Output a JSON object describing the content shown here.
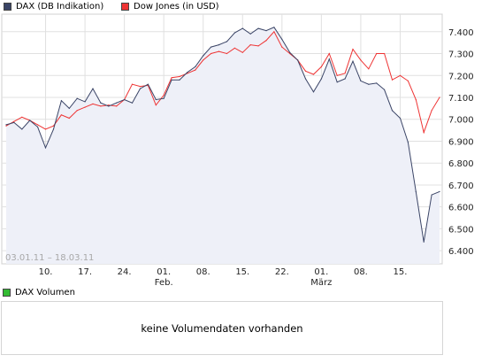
{
  "legend": {
    "dax_label": "DAX (DB Indikation)",
    "dow_label": "Dow Jones (in USD)"
  },
  "colors": {
    "dax": "#3a4466",
    "dow": "#ee3333",
    "fill": "#eef0f8",
    "volume": "#33bb33",
    "grid": "#e0e0e0"
  },
  "volume": {
    "legend_label": "DAX Volumen",
    "empty_text": "keine Volumendaten vorhanden"
  },
  "chart_data": {
    "type": "line",
    "date_range_label": "03.01.11 – 18.03.11",
    "ylim": [
      6340,
      7480
    ],
    "y_ticks": [
      6400,
      6500,
      6600,
      6700,
      6800,
      6900,
      7000,
      7100,
      7200,
      7300,
      7400
    ],
    "y_tick_labels": [
      "6.400",
      "6.500",
      "6.600",
      "6.700",
      "6.800",
      "6.900",
      "7.000",
      "7.100",
      "7.200",
      "7.300",
      "7.400"
    ],
    "x_ticks": [
      "10.",
      "17.",
      "24.",
      "01.",
      "08.",
      "15.",
      "22.",
      "01.",
      "08.",
      "15."
    ],
    "x_tick_index": [
      5,
      10,
      15,
      20,
      25,
      30,
      35,
      40,
      45,
      50
    ],
    "month_labels": [
      {
        "label": "Feb.",
        "index": 20
      },
      {
        "label": "März",
        "index": 40
      }
    ],
    "series": [
      {
        "name": "DAX (DB Indikation)",
        "values": [
          6975,
          6985,
          6955,
          6995,
          6965,
          6870,
          6955,
          7085,
          7050,
          7095,
          7080,
          7140,
          7075,
          7060,
          7075,
          7090,
          7075,
          7140,
          7160,
          7090,
          7095,
          7180,
          7180,
          7215,
          7240,
          7290,
          7330,
          7340,
          7355,
          7395,
          7415,
          7390,
          7415,
          7405,
          7420,
          7365,
          7305,
          7270,
          7185,
          7125,
          7185,
          7275,
          7170,
          7185,
          7265,
          7175,
          7160,
          7165,
          7135,
          7040,
          7005,
          6895,
          6670,
          6440,
          6655,
          6670
        ]
      },
      {
        "name": "Dow Jones (in USD)",
        "values": [
          6970,
          6990,
          7010,
          6995,
          6975,
          6955,
          6970,
          7020,
          7005,
          7040,
          7055,
          7070,
          7060,
          7065,
          7060,
          7090,
          7160,
          7150,
          7155,
          7065,
          7110,
          7190,
          7195,
          7210,
          7225,
          7270,
          7300,
          7310,
          7300,
          7325,
          7305,
          7340,
          7335,
          7360,
          7400,
          7330,
          7300,
          7270,
          7220,
          7205,
          7240,
          7300,
          7200,
          7210,
          7320,
          7270,
          7230,
          7300,
          7300,
          7180,
          7200,
          7175,
          7090,
          6940,
          7040,
          7100
        ]
      }
    ],
    "grid": true,
    "legend_position": "top-left"
  }
}
